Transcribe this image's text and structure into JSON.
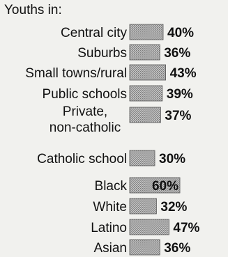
{
  "chart_data": {
    "type": "bar",
    "orientation": "horizontal",
    "header": "Youths in:",
    "categories": [
      "Central city",
      "Suburbs",
      "Small towns/rural",
      "Public schools",
      "Private, non-catholic",
      "Catholic school",
      "Black",
      "White",
      "Latino",
      "Asian"
    ],
    "values": [
      40,
      36,
      43,
      39,
      37,
      30,
      60,
      32,
      47,
      36
    ],
    "value_labels": [
      "40%",
      "36%",
      "43%",
      "39%",
      "37%",
      "30%",
      "60%",
      "32%",
      "47%",
      "36%"
    ],
    "unit": "%",
    "grid": false,
    "legend": "none"
  }
}
